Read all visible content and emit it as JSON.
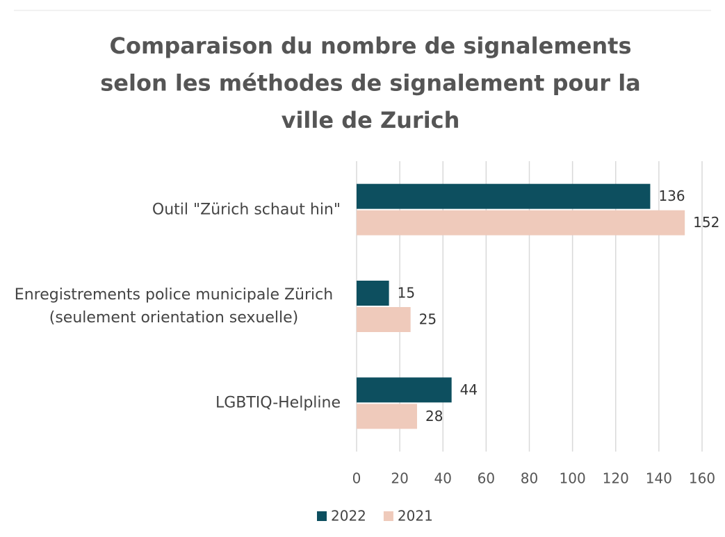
{
  "chart_data": {
    "type": "bar",
    "orientation": "horizontal",
    "title": [
      "Comparaison du nombre de signalements",
      "selon les méthodes de signalement pour la",
      "ville de Zurich"
    ],
    "categories": [
      "Outil \"Zürich schaut hin\"",
      "Enregistrements police municipale Zürich (seulement orientation sexuelle)",
      "LGBTIQ-Helpline"
    ],
    "series": [
      {
        "name": "2022",
        "color": "#0d4f5f",
        "values": [
          136,
          15,
          44
        ]
      },
      {
        "name": "2021",
        "color": "#efcabb",
        "values": [
          152,
          25,
          28
        ]
      }
    ],
    "xlim": [
      0,
      160
    ],
    "xticks": [
      0,
      20,
      40,
      60,
      80,
      100,
      120,
      140,
      160
    ],
    "grid": true,
    "legend": "bottom"
  }
}
